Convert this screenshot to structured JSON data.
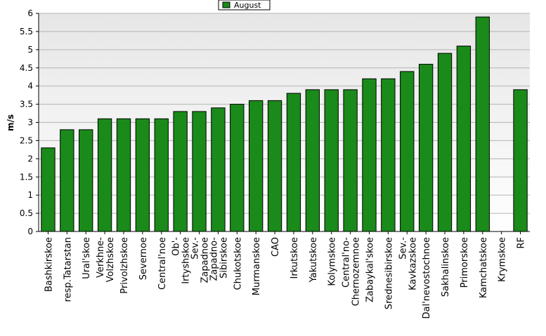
{
  "chart_data": {
    "type": "bar",
    "title": "",
    "xlabel": "",
    "ylabel": "m/s",
    "ylim": [
      0,
      6
    ],
    "yticks": [
      "0",
      "0.5",
      "1",
      "1.5",
      "2",
      "2.5",
      "3",
      "3.5",
      "4",
      "4.5",
      "5",
      "5.5",
      "6"
    ],
    "grid": true,
    "legend_position": "top-center",
    "series": [
      {
        "name": "August",
        "color": "#1a8a1a",
        "values": [
          2.3,
          2.8,
          2.8,
          3.1,
          3.1,
          3.1,
          3.1,
          3.3,
          3.3,
          3.4,
          3.5,
          3.6,
          3.6,
          3.8,
          3.9,
          3.9,
          3.9,
          4.2,
          4.2,
          4.4,
          4.6,
          4.9,
          5.1,
          5.9,
          null,
          3.9
        ]
      }
    ],
    "categories": [
      [
        "Bashkirskoe"
      ],
      [
        "resp.Tatarstan"
      ],
      [
        "Ural'skoe"
      ],
      [
        "Verkhne-",
        "Volzhskoe"
      ],
      [
        "Privolzhskoe"
      ],
      [
        "Severnoe"
      ],
      [
        "Central'noe"
      ],
      [
        "Ob'-",
        "Irtyshskoe"
      ],
      [
        "Sev.-",
        "Zapadnoe"
      ],
      [
        "Zapadno-",
        "Sibirskoe"
      ],
      [
        "Chukotskoe"
      ],
      [
        "Murmanskoe"
      ],
      [
        "CAO"
      ],
      [
        "Irkutskoe"
      ],
      [
        "Yakutskoe"
      ],
      [
        "Kolymskoe"
      ],
      [
        "Central'no-",
        "Chernozemnoe"
      ],
      [
        "Zabaykal'skoe"
      ],
      [
        "Srednesibirskoe"
      ],
      [
        "Sev.-",
        "Kavkazskoe"
      ],
      [
        "Dal'nevostochnoe"
      ],
      [
        "Sakhalinskoe"
      ],
      [
        "Primorskoe"
      ],
      [
        "Kamchatskoe"
      ],
      [
        "Krymskoe"
      ],
      [
        "RF"
      ]
    ]
  }
}
